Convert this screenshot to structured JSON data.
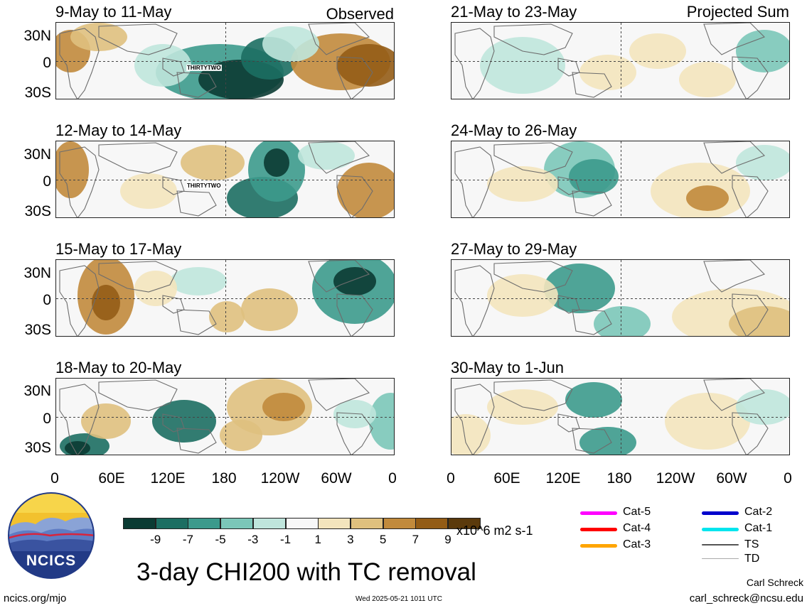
{
  "panels": [
    {
      "title": "9-May to 11-May",
      "tag": "Observed",
      "storm": "THIRTYTWO"
    },
    {
      "title": "12-May to 14-May",
      "tag": "",
      "storm": "THIRTYTWO"
    },
    {
      "title": "15-May to 17-May",
      "tag": "",
      "storm": ""
    },
    {
      "title": "18-May to 20-May",
      "tag": "",
      "storm": ""
    },
    {
      "title": "21-May to 23-May",
      "tag": "Projected Sum",
      "storm": ""
    },
    {
      "title": "24-May to 26-May",
      "tag": "",
      "storm": ""
    },
    {
      "title": "27-May to 29-May",
      "tag": "",
      "storm": ""
    },
    {
      "title": "30-May to 1-Jun",
      "tag": "",
      "storm": ""
    }
  ],
  "lat_labels": [
    "30N",
    "0",
    "30S"
  ],
  "lon_labels": [
    "0",
    "60E",
    "120E",
    "180",
    "120W",
    "60W",
    "0"
  ],
  "colorbar": {
    "colors": [
      "#0b3b33",
      "#1c6e62",
      "#3c9a8c",
      "#7bc6b8",
      "#bfe5dc",
      "#f7f7f7",
      "#f3e4bd",
      "#dfc07e",
      "#c18a3c",
      "#935c16",
      "#5b3a0c"
    ],
    "labels": [
      "-9",
      "-7",
      "-5",
      "-3",
      "-1",
      "1",
      "3",
      "5",
      "7",
      "9"
    ],
    "units": "x10^6 m2 s-1"
  },
  "legend": [
    {
      "label": "Cat-5",
      "color": "#ff00ff"
    },
    {
      "label": "Cat-4",
      "color": "#ff0000"
    },
    {
      "label": "Cat-3",
      "color": "#ffa500"
    },
    {
      "label": "Cat-2",
      "color": "#0000cc"
    },
    {
      "label": "Cat-1",
      "color": "#00e5ee"
    },
    {
      "label": "TS",
      "color": "#555555"
    },
    {
      "label": "TD",
      "color": "#aaaaaa"
    }
  ],
  "logo_text": "NCICS",
  "main_title": "3-day CHI200 with TC removal",
  "author": "Carl Schreck",
  "email": "carl_schreck@ncsu.edu",
  "website": "ncics.org/mjo",
  "timestamp": "Wed 2025-05-21 1011 UTC"
}
